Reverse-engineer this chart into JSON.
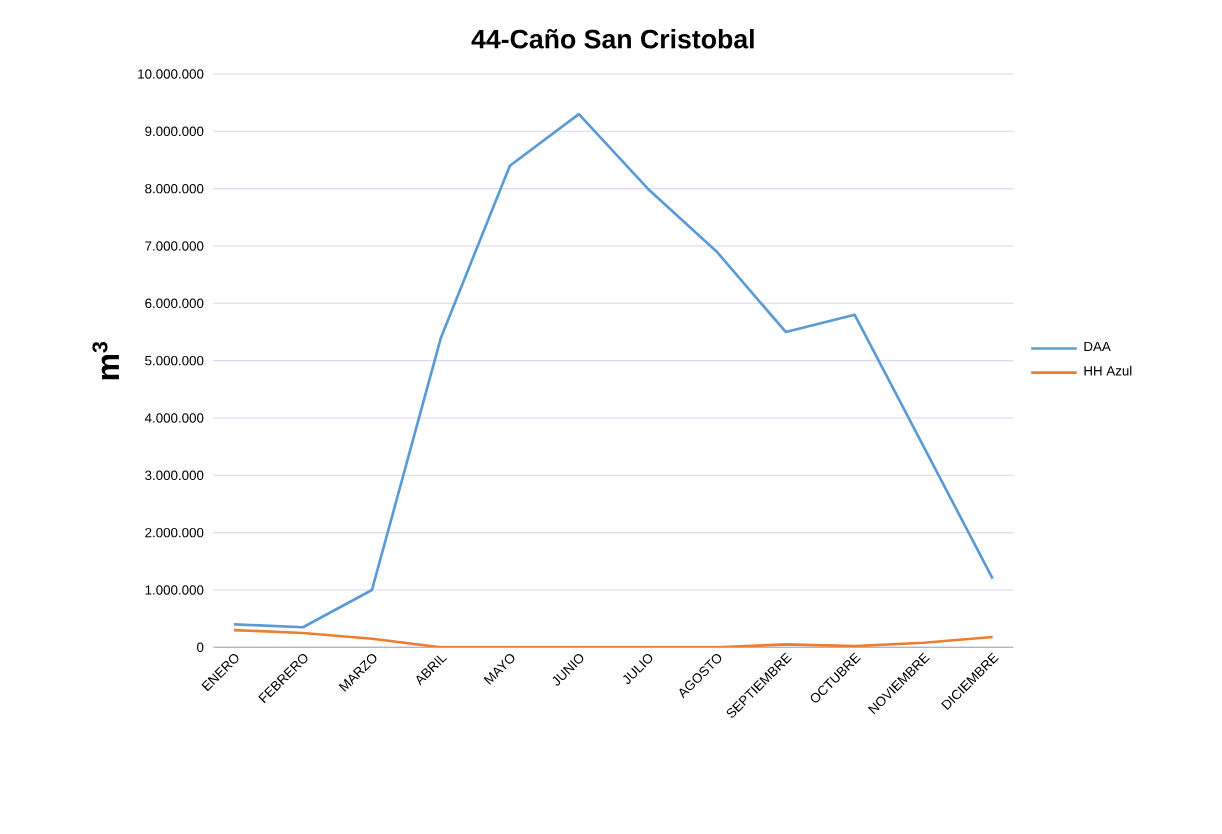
{
  "chart_data": {
    "type": "line",
    "title": "44-Caño San Cristobal",
    "ylabel": "m$^{3}$",
    "categories": [
      "ENERO",
      "FEBRERO",
      "MARZO",
      "ABRIL",
      "MAYO",
      "JUNIO",
      "JULIO",
      "AGOSTO",
      "SEPTIEMBRE",
      "OCTUBRE",
      "NOVIEMBRE",
      "DICIEMBRE"
    ],
    "series": [
      {
        "name": "DAA",
        "color": "#5b9bd5",
        "values": [
          400000,
          350000,
          1000000,
          5400000,
          8400000,
          9300000,
          8000000,
          6900000,
          5500000,
          5800000,
          3500000,
          1200000
        ]
      },
      {
        "name": "HH Azul",
        "color": "#ed7d31",
        "values": [
          300000,
          250000,
          150000,
          0,
          0,
          0,
          0,
          0,
          50000,
          20000,
          80000,
          180000
        ]
      }
    ],
    "ylim": [
      0,
      10000000
    ],
    "yticks": [
      0,
      {
        "value": 1000000,
        "label": "1.000.000"
      },
      {
        "value": 2000000,
        "label": "2.000.000"
      },
      {
        "value": 3000000,
        "label": "3.000.000"
      },
      {
        "value": 4000000,
        "label": "4.000.000"
      },
      {
        "value": 5000000,
        "label": "5.000.000"
      },
      {
        "value": 6000000,
        "label": "6.000.000"
      },
      {
        "value": 7000000,
        "label": "7.000.000"
      },
      {
        "value": 8000000,
        "label": "8.000.000"
      },
      {
        "value": 9000000,
        "label": "9.000.000"
      },
      {
        "value": 10000000,
        "label": "10.000.000"
      }
    ],
    "grid": "y",
    "legend": "right",
    "marker": "none",
    "line_style": "solid"
  }
}
